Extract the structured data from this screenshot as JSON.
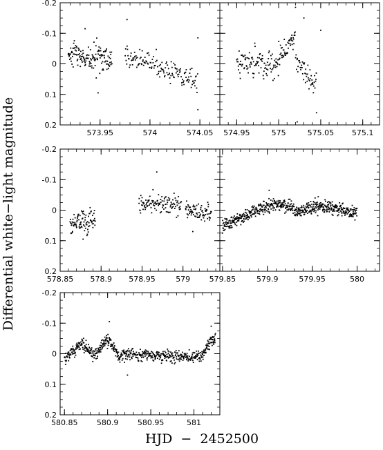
{
  "figure": {
    "ylabel": "Differential white−light magnitude",
    "xlabel": "HJD  −  2452500"
  },
  "chart_data": [
    {
      "type": "scatter",
      "id": "panel-1",
      "xlim": [
        573.91,
        574.07
      ],
      "ylim": [
        -0.2,
        0.2
      ],
      "y_inverted": true,
      "xticks": [
        {
          "v": 573.95,
          "label": "573.95"
        },
        {
          "v": 574.0,
          "label": "574"
        },
        {
          "v": 574.05,
          "label": "574.05"
        }
      ],
      "yticks": [
        {
          "v": -0.2,
          "label": "-0.2"
        },
        {
          "v": -0.1,
          "label": "-0.1"
        },
        {
          "v": 0.0,
          "label": "0"
        },
        {
          "v": 0.1,
          "label": "0.1"
        },
        {
          "v": 0.2,
          "label": "0.2"
        }
      ],
      "show_xtick_labels": true,
      "show_ytick_labels": true,
      "segments": [
        {
          "x0": 573.918,
          "x1": 573.962,
          "y0": -0.03,
          "y1": -0.01,
          "spread": 0.035,
          "n": 150
        },
        {
          "x0": 573.975,
          "x1": 574.048,
          "y0": -0.03,
          "y1": 0.06,
          "spread": 0.03,
          "n": 150
        }
      ],
      "extra_points": [
        [
          573.977,
          -0.145
        ],
        [
          574.048,
          0.15
        ],
        [
          574.048,
          -0.085
        ],
        [
          573.935,
          -0.115
        ],
        [
          573.948,
          0.095
        ]
      ]
    },
    {
      "type": "scatter",
      "id": "panel-2",
      "xlim": [
        574.93,
        575.12
      ],
      "ylim": [
        -0.2,
        0.2
      ],
      "y_inverted": true,
      "xticks": [
        {
          "v": 574.95,
          "label": "574.95"
        },
        {
          "v": 575.0,
          "label": "575"
        },
        {
          "v": 575.05,
          "label": "575.05"
        },
        {
          "v": 575.1,
          "label": "575.1"
        }
      ],
      "yticks": [
        {
          "v": -0.2,
          "label": ""
        },
        {
          "v": -0.1,
          "label": ""
        },
        {
          "v": 0.0,
          "label": ""
        },
        {
          "v": 0.1,
          "label": ""
        },
        {
          "v": 0.2,
          "label": ""
        }
      ],
      "show_xtick_labels": true,
      "show_ytick_labels": false,
      "segments": [
        {
          "x0": 574.95,
          "x1": 575.0,
          "y0": -0.01,
          "y1": 0.01,
          "spread": 0.04,
          "n": 110
        },
        {
          "x0": 575.0,
          "x1": 575.02,
          "y0": -0.02,
          "y1": -0.09,
          "spread": 0.035,
          "n": 50
        },
        {
          "x0": 575.02,
          "x1": 575.045,
          "y0": -0.02,
          "y1": 0.08,
          "spread": 0.04,
          "n": 50
        }
      ],
      "extra_points": [
        [
          575.02,
          -0.185
        ],
        [
          575.045,
          0.16
        ],
        [
          575.05,
          -0.11
        ],
        [
          575.03,
          -0.15
        ],
        [
          575.022,
          0.19
        ]
      ]
    },
    {
      "type": "scatter",
      "id": "panel-3",
      "xlim": [
        578.85,
        579.045
      ],
      "ylim": [
        -0.2,
        0.2
      ],
      "y_inverted": true,
      "xticks": [
        {
          "v": 578.85,
          "label": "578.85"
        },
        {
          "v": 578.9,
          "label": "578.9"
        },
        {
          "v": 578.95,
          "label": "578.95"
        },
        {
          "v": 579.0,
          "label": "579"
        }
      ],
      "yticks": [
        {
          "v": -0.2,
          "label": "-0.2"
        },
        {
          "v": -0.1,
          "label": "-0.1"
        },
        {
          "v": 0.0,
          "label": "0"
        },
        {
          "v": 0.1,
          "label": "0.1"
        },
        {
          "v": 0.2,
          "label": "0.2"
        }
      ],
      "show_xtick_labels": true,
      "show_ytick_labels": true,
      "segments": [
        {
          "x0": 578.862,
          "x1": 578.893,
          "y0": 0.05,
          "y1": 0.03,
          "spread": 0.035,
          "n": 90
        },
        {
          "x0": 578.946,
          "x1": 578.998,
          "y0": -0.02,
          "y1": -0.02,
          "spread": 0.03,
          "n": 110
        },
        {
          "x0": 579.003,
          "x1": 579.035,
          "y0": 0.0,
          "y1": 0.01,
          "spread": 0.025,
          "n": 80
        }
      ],
      "extra_points": [
        [
          578.968,
          -0.125
        ],
        [
          578.878,
          0.095
        ],
        [
          579.012,
          0.07
        ]
      ]
    },
    {
      "type": "scatter",
      "id": "panel-4",
      "xlim": [
        579.847,
        580.025
      ],
      "ylim": [
        -0.2,
        0.2
      ],
      "y_inverted": true,
      "xticks": [
        {
          "v": 579.85,
          "label": "579.85"
        },
        {
          "v": 579.9,
          "label": "579.9"
        },
        {
          "v": 579.95,
          "label": "579.95"
        },
        {
          "v": 580.0,
          "label": "580"
        }
      ],
      "yticks": [
        {
          "v": -0.2,
          "label": ""
        },
        {
          "v": -0.1,
          "label": ""
        },
        {
          "v": 0.0,
          "label": ""
        },
        {
          "v": 0.1,
          "label": ""
        },
        {
          "v": 0.2,
          "label": ""
        }
      ],
      "show_xtick_labels": true,
      "show_ytick_labels": false,
      "segments": [
        {
          "x0": 579.85,
          "x1": 579.905,
          "y0": 0.05,
          "y1": -0.02,
          "spread": 0.018,
          "n": 220
        },
        {
          "x0": 579.905,
          "x1": 579.93,
          "y0": -0.02,
          "y1": -0.01,
          "spread": 0.018,
          "n": 100
        },
        {
          "x0": 579.93,
          "x1": 579.955,
          "y0": 0.01,
          "y1": -0.015,
          "spread": 0.018,
          "n": 100
        },
        {
          "x0": 579.955,
          "x1": 580.0,
          "y0": -0.015,
          "y1": 0.01,
          "spread": 0.018,
          "n": 180
        }
      ],
      "extra_points": [
        [
          579.902,
          -0.065
        ],
        [
          579.85,
          0.075
        ]
      ]
    },
    {
      "type": "scatter",
      "id": "panel-5",
      "xlim": [
        580.845,
        581.03
      ],
      "ylim": [
        -0.2,
        0.2
      ],
      "y_inverted": true,
      "xticks": [
        {
          "v": 580.85,
          "label": "580.85"
        },
        {
          "v": 580.9,
          "label": "580.9"
        },
        {
          "v": 580.95,
          "label": "580.95"
        },
        {
          "v": 581.0,
          "label": "581"
        }
      ],
      "yticks": [
        {
          "v": -0.2,
          "label": "-0.2"
        },
        {
          "v": -0.1,
          "label": "-0.1"
        },
        {
          "v": 0.0,
          "label": "0"
        },
        {
          "v": 0.1,
          "label": "0.1"
        },
        {
          "v": 0.2,
          "label": "0.2"
        }
      ],
      "show_xtick_labels": true,
      "show_ytick_labels": true,
      "segments": [
        {
          "x0": 580.85,
          "x1": 580.87,
          "y0": 0.02,
          "y1": -0.035,
          "spread": 0.018,
          "n": 70
        },
        {
          "x0": 580.87,
          "x1": 580.885,
          "y0": -0.035,
          "y1": 0.01,
          "spread": 0.018,
          "n": 55
        },
        {
          "x0": 580.885,
          "x1": 580.9,
          "y0": 0.01,
          "y1": -0.05,
          "spread": 0.018,
          "n": 55
        },
        {
          "x0": 580.9,
          "x1": 580.915,
          "y0": -0.05,
          "y1": 0.02,
          "spread": 0.018,
          "n": 55
        },
        {
          "x0": 580.915,
          "x1": 581.01,
          "y0": 0.0,
          "y1": 0.01,
          "spread": 0.018,
          "n": 300
        },
        {
          "x0": 581.01,
          "x1": 581.025,
          "y0": 0.0,
          "y1": -0.06,
          "spread": 0.02,
          "n": 60
        }
      ],
      "extra_points": [
        [
          580.902,
          -0.105
        ],
        [
          580.923,
          0.07
        ],
        [
          581.02,
          -0.09
        ]
      ]
    }
  ]
}
